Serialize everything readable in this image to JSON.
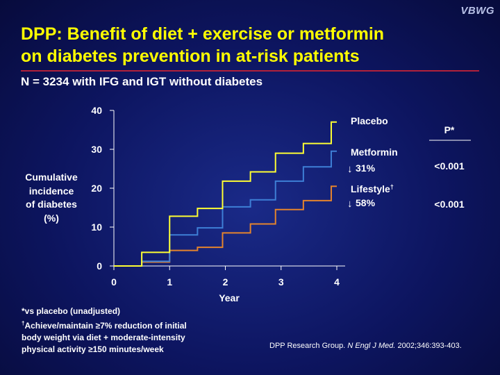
{
  "brand": "VBWG",
  "title_line1": "DPP: Benefit of diet + exercise or metformin",
  "title_line2": "on diabetes prevention in at-risk patients",
  "subtitle": "N = 3234 with IFG and IGT without diabetes",
  "colors": {
    "placebo": "#ffff33",
    "metformin": "#3e7fd6",
    "lifestyle": "#e5842c",
    "title": "#ffff00",
    "rule": "#b2213a"
  },
  "stats": {
    "p_header": "P*",
    "metformin_reduction": "31%",
    "metformin_p": "<0.001",
    "lifestyle_reduction": "58%",
    "lifestyle_p": "<0.001",
    "down_arrow": "↓"
  },
  "footnote": {
    "line1": "*vs placebo (unadjusted)",
    "dagger": "†",
    "line2": "Achieve/maintain ≥7% reduction of initial",
    "line3": "body weight via diet + moderate-intensity",
    "line4": "physical activity ≥150 minutes/week"
  },
  "citation": {
    "authors": "DPP Research Group.",
    "journal": "N Engl J Med.",
    "ref": "2002;346:393-403."
  },
  "chart_data": {
    "type": "line",
    "step": true,
    "xlabel": "Year",
    "ylabel": "Cumulative incidence of diabetes (%)",
    "ylabel_lines": [
      "Cumulative",
      "incidence",
      "of diabetes",
      "(%)"
    ],
    "xlim": [
      0,
      4
    ],
    "ylim": [
      0,
      40
    ],
    "xticks": [
      "0",
      "1",
      "2",
      "3",
      "4"
    ],
    "yticks": [
      "0",
      "10",
      "20",
      "30",
      "40"
    ],
    "series": [
      {
        "name": "Placebo",
        "label_suffix": "",
        "color": "#ffff33",
        "x": [
          0,
          0.5,
          1.0,
          1.5,
          1.95,
          2.45,
          2.9,
          3.4,
          3.9,
          4.0
        ],
        "y": [
          0,
          3.5,
          12.8,
          14.8,
          21.8,
          24.2,
          29.0,
          31.5,
          37.0,
          37.0
        ]
      },
      {
        "name": "Metformin",
        "label_suffix": "",
        "color": "#3e7fd6",
        "x": [
          0,
          0.5,
          1.0,
          1.5,
          1.95,
          2.45,
          2.9,
          3.4,
          3.9,
          4.0
        ],
        "y": [
          0,
          1.2,
          8.0,
          9.8,
          15.2,
          17.0,
          21.8,
          25.5,
          29.5,
          29.5
        ]
      },
      {
        "name": "Lifestyle",
        "label_suffix": "†",
        "color": "#e5842c",
        "x": [
          0,
          0.5,
          1.0,
          1.5,
          1.95,
          2.45,
          2.9,
          3.4,
          3.9,
          4.0
        ],
        "y": [
          0,
          1.0,
          4.0,
          4.8,
          8.5,
          10.8,
          14.5,
          16.8,
          20.5,
          20.5
        ]
      }
    ]
  }
}
